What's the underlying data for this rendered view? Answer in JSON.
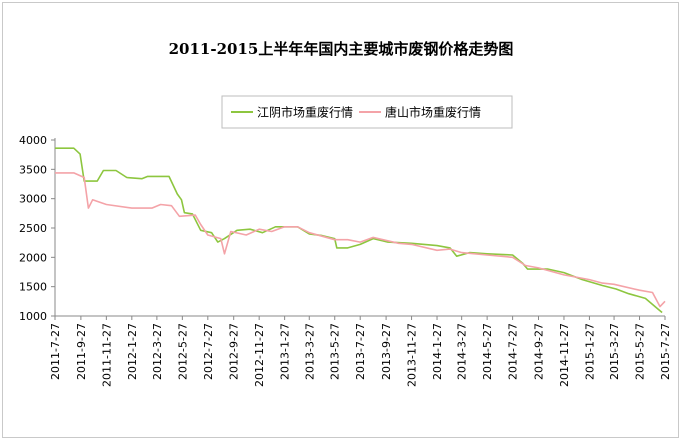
{
  "chart_data": {
    "type": "line",
    "title": "2011-2015上半年年国内主要城市废钢价格走势图",
    "xlabel": "",
    "ylabel": "",
    "ylim": [
      1000,
      4000
    ],
    "yticks": [
      1000,
      1500,
      2000,
      2500,
      3000,
      3500,
      4000
    ],
    "xlim": [
      "2011-07-27",
      "2015-07-27"
    ],
    "xticks": [
      "2011-7-27",
      "2011-9-27",
      "2011-11-27",
      "2012-1-27",
      "2012-3-27",
      "2012-5-27",
      "2012-7-27",
      "2012-9-27",
      "2012-11-27",
      "2013-1-27",
      "2013-3-27",
      "2013-5-27",
      "2013-7-27",
      "2013-9-27",
      "2013-11-27",
      "2014-1-27",
      "2014-3-27",
      "2014-5-27",
      "2014-7-27",
      "2014-9-27",
      "2014-11-27",
      "2015-1-27",
      "2015-3-27",
      "2015-5-27",
      "2015-7-27"
    ],
    "grid": false,
    "legend": "top-center",
    "series": [
      {
        "name": "江阴市场重废行情",
        "color": "#8dc63f",
        "points": [
          [
            "2011-07-27",
            3860
          ],
          [
            "2011-09-10",
            3860
          ],
          [
            "2011-09-25",
            3760
          ],
          [
            "2011-10-05",
            3300
          ],
          [
            "2011-11-05",
            3300
          ],
          [
            "2011-11-20",
            3480
          ],
          [
            "2011-12-20",
            3480
          ],
          [
            "2012-01-15",
            3360
          ],
          [
            "2012-02-20",
            3340
          ],
          [
            "2012-03-05",
            3380
          ],
          [
            "2012-04-25",
            3380
          ],
          [
            "2012-05-15",
            3080
          ],
          [
            "2012-05-25",
            2980
          ],
          [
            "2012-06-01",
            2760
          ],
          [
            "2012-06-20",
            2740
          ],
          [
            "2012-07-10",
            2460
          ],
          [
            "2012-08-05",
            2420
          ],
          [
            "2012-08-20",
            2260
          ],
          [
            "2012-09-05",
            2320
          ],
          [
            "2012-10-05",
            2460
          ],
          [
            "2012-11-05",
            2480
          ],
          [
            "2012-12-05",
            2420
          ],
          [
            "2013-01-05",
            2520
          ],
          [
            "2013-02-27",
            2520
          ],
          [
            "2013-03-27",
            2400
          ],
          [
            "2013-04-27",
            2370
          ],
          [
            "2013-05-27",
            2320
          ],
          [
            "2013-06-01",
            2160
          ],
          [
            "2013-06-27",
            2160
          ],
          [
            "2013-07-27",
            2220
          ],
          [
            "2013-08-27",
            2320
          ],
          [
            "2013-10-01",
            2260
          ],
          [
            "2013-11-27",
            2240
          ],
          [
            "2014-01-27",
            2200
          ],
          [
            "2014-02-27",
            2160
          ],
          [
            "2014-03-15",
            2020
          ],
          [
            "2014-04-15",
            2080
          ],
          [
            "2014-05-27",
            2060
          ],
          [
            "2014-07-27",
            2040
          ],
          [
            "2014-08-20",
            1900
          ],
          [
            "2014-09-01",
            1800
          ],
          [
            "2014-10-20",
            1800
          ],
          [
            "2014-11-27",
            1740
          ],
          [
            "2015-01-10",
            1620
          ],
          [
            "2015-02-27",
            1520
          ],
          [
            "2015-04-01",
            1460
          ],
          [
            "2015-05-01",
            1380
          ],
          [
            "2015-06-10",
            1300
          ],
          [
            "2015-07-10",
            1120
          ],
          [
            "2015-07-20",
            1060
          ]
        ]
      },
      {
        "name": "唐山市场重废行情",
        "color": "#f4a3a8",
        "points": [
          [
            "2011-07-27",
            3440
          ],
          [
            "2011-09-10",
            3440
          ],
          [
            "2011-10-05",
            3360
          ],
          [
            "2011-10-15",
            2840
          ],
          [
            "2011-10-25",
            2980
          ],
          [
            "2011-11-27",
            2900
          ],
          [
            "2012-01-27",
            2840
          ],
          [
            "2012-03-15",
            2840
          ],
          [
            "2012-04-05",
            2900
          ],
          [
            "2012-05-01",
            2880
          ],
          [
            "2012-05-20",
            2700
          ],
          [
            "2012-06-27",
            2720
          ],
          [
            "2012-07-10",
            2560
          ],
          [
            "2012-07-27",
            2380
          ],
          [
            "2012-08-27",
            2320
          ],
          [
            "2012-09-05",
            2060
          ],
          [
            "2012-09-20",
            2440
          ],
          [
            "2012-10-27",
            2380
          ],
          [
            "2012-11-27",
            2480
          ],
          [
            "2012-12-27",
            2440
          ],
          [
            "2013-01-27",
            2520
          ],
          [
            "2013-02-27",
            2520
          ],
          [
            "2013-03-27",
            2420
          ],
          [
            "2013-05-27",
            2300
          ],
          [
            "2013-06-27",
            2300
          ],
          [
            "2013-07-27",
            2260
          ],
          [
            "2013-08-27",
            2340
          ],
          [
            "2013-10-27",
            2240
          ],
          [
            "2013-11-27",
            2220
          ],
          [
            "2014-01-27",
            2120
          ],
          [
            "2014-02-27",
            2140
          ],
          [
            "2014-03-27",
            2080
          ],
          [
            "2014-05-27",
            2040
          ],
          [
            "2014-07-27",
            2000
          ],
          [
            "2014-08-27",
            1860
          ],
          [
            "2014-09-27",
            1820
          ],
          [
            "2014-11-27",
            1700
          ],
          [
            "2015-01-27",
            1620
          ],
          [
            "2015-02-27",
            1560
          ],
          [
            "2015-03-27",
            1540
          ],
          [
            "2015-05-27",
            1440
          ],
          [
            "2015-06-27",
            1400
          ],
          [
            "2015-07-15",
            1160
          ],
          [
            "2015-07-27",
            1250
          ]
        ]
      }
    ]
  }
}
